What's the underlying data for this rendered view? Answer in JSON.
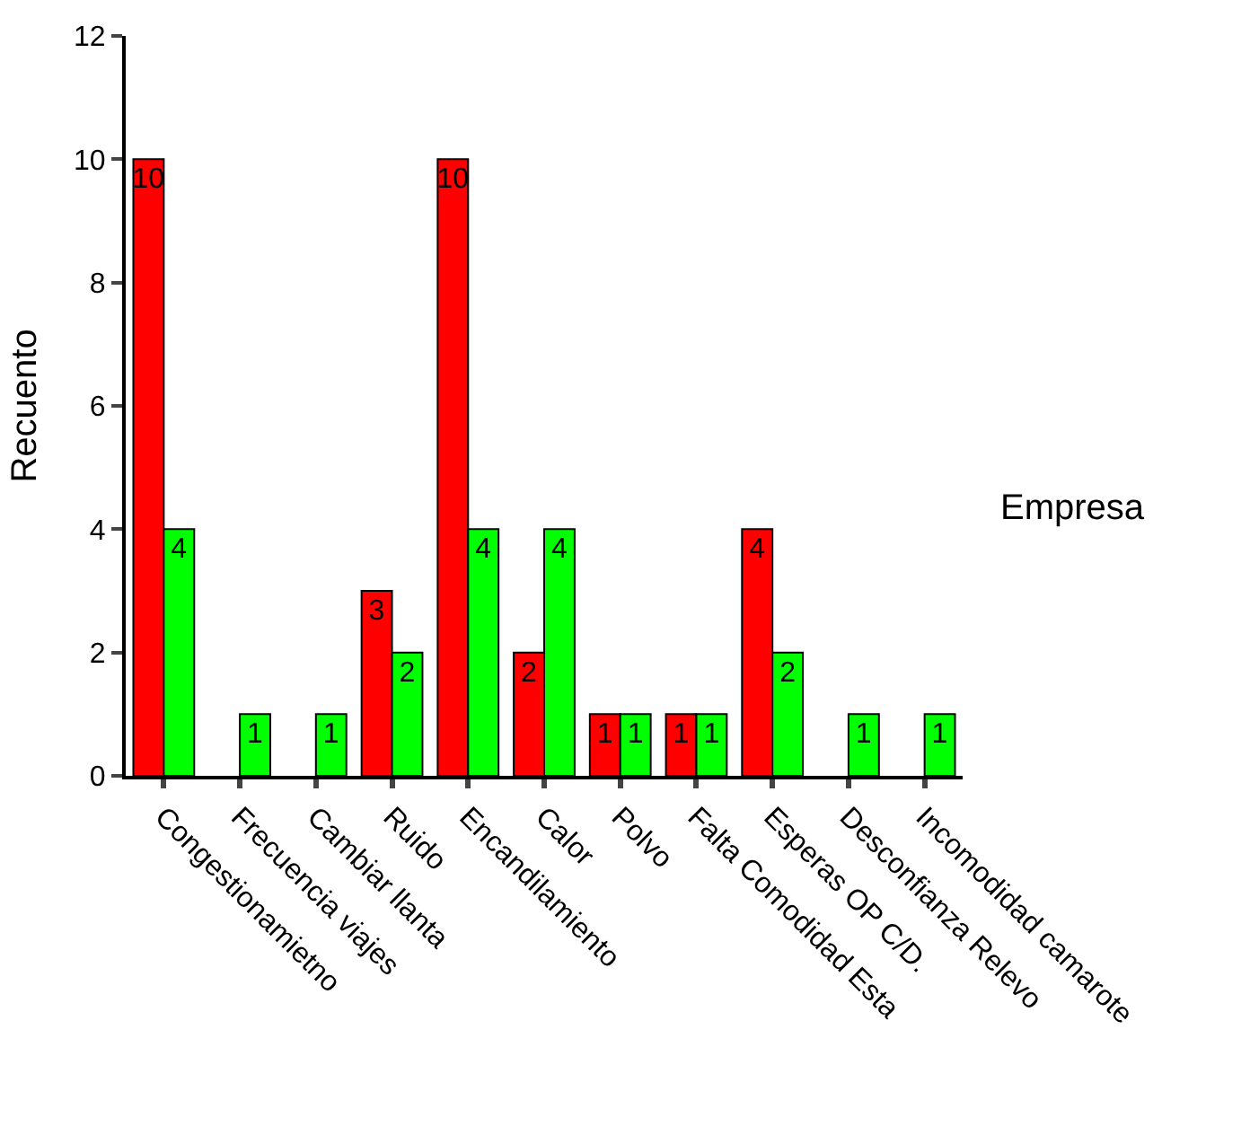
{
  "chart_data": {
    "type": "bar",
    "categories": [
      "Congestionamietno",
      "Frecuencia viajes",
      "Cambiar llanta",
      "Ruido",
      "Encandilamiento",
      "Calor",
      "Polvo",
      "Falta Comodidad Esta",
      "Esperas OP C/D.",
      "Desconfianza Relevo",
      "Incomodidad camarote"
    ],
    "series": [
      {
        "color": "#ff0000",
        "values": [
          10,
          null,
          null,
          3,
          10,
          2,
          1,
          1,
          4,
          null,
          null
        ]
      },
      {
        "color": "#00ff00",
        "values": [
          4,
          1,
          1,
          2,
          4,
          4,
          1,
          1,
          2,
          1,
          1
        ]
      }
    ],
    "ylabel": "Recuento",
    "ylim": [
      0,
      12
    ],
    "yticks": [
      0,
      2,
      4,
      6,
      8,
      10,
      12
    ],
    "annotations": [
      "Empresa"
    ],
    "data_labels": true
  }
}
